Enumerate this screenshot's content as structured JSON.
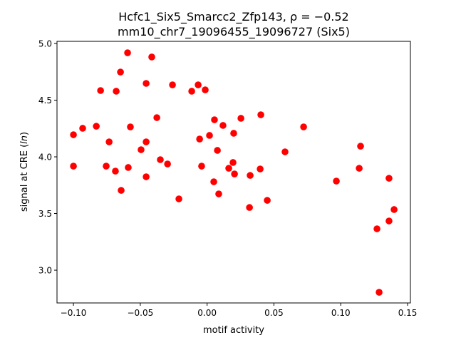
{
  "chart_data": {
    "type": "scatter",
    "title_line1": "Hcfc1_Six5_Smarcc2_Zfp143, ρ = −0.52",
    "title_line2": "mm10_chr7_19096455_19096727 (Six5)",
    "xlabel": "motif activity",
    "ylabel_prefix": "signal at CRE (",
    "ylabel_italic": "ln",
    "ylabel_suffix": ")",
    "xlim": [
      -0.1123,
      0.1521
    ],
    "ylim": [
      2.711,
      5.019
    ],
    "xticks": [
      -0.1,
      -0.05,
      0.0,
      0.05,
      0.1,
      0.15
    ],
    "xtick_labels": [
      "−0.10",
      "−0.05",
      "0.00",
      "0.05",
      "0.10",
      "0.15"
    ],
    "yticks": [
      3.0,
      3.5,
      4.0,
      4.5,
      5.0
    ],
    "ytick_labels": [
      "3.0",
      "3.5",
      "4.0",
      "4.5",
      "5.0"
    ],
    "grid": false,
    "marker_color": "#ff0000",
    "points": [
      [
        -0.0595,
        4.918
      ],
      [
        -0.0414,
        4.881
      ],
      [
        -0.0648,
        4.748
      ],
      [
        -0.0456,
        4.648
      ],
      [
        -0.0259,
        4.635
      ],
      [
        -0.0067,
        4.635
      ],
      [
        -0.0115,
        4.579
      ],
      [
        -0.0014,
        4.591
      ],
      [
        -0.0797,
        4.585
      ],
      [
        -0.068,
        4.579
      ],
      [
        -0.0376,
        4.346
      ],
      [
        0.0055,
        4.327
      ],
      [
        0.0119,
        4.277
      ],
      [
        -0.0931,
        4.252
      ],
      [
        -0.0829,
        4.27
      ],
      [
        -0.0574,
        4.264
      ],
      [
        -0.1,
        4.195
      ],
      [
        0.0199,
        4.208
      ],
      [
        0.0018,
        4.189
      ],
      [
        -0.0056,
        4.157
      ],
      [
        -0.0733,
        4.132
      ],
      [
        -0.0456,
        4.132
      ],
      [
        -0.0494,
        4.063
      ],
      [
        0.0077,
        4.057
      ],
      [
        -0.035,
        3.975
      ],
      [
        -0.0296,
        3.937
      ],
      [
        0.0194,
        3.95
      ],
      [
        -0.1,
        3.918
      ],
      [
        -0.0755,
        3.918
      ],
      [
        -0.0041,
        3.918
      ],
      [
        -0.0686,
        3.874
      ],
      [
        -0.059,
        3.906
      ],
      [
        0.0162,
        3.899
      ],
      [
        -0.0456,
        3.824
      ],
      [
        0.005,
        3.78
      ],
      [
        -0.0643,
        3.704
      ],
      [
        0.0087,
        3.673
      ],
      [
        -0.0211,
        3.629
      ],
      [
        0.0253,
        4.34
      ],
      [
        0.0402,
        4.371
      ],
      [
        0.0205,
        3.849
      ],
      [
        0.0397,
        3.893
      ],
      [
        0.0322,
        3.836
      ],
      [
        0.045,
        3.616
      ],
      [
        0.0317,
        3.553
      ],
      [
        0.0722,
        4.264
      ],
      [
        0.0583,
        4.044
      ],
      [
        0.1148,
        4.094
      ],
      [
        0.1138,
        3.899
      ],
      [
        0.0967,
        3.786
      ],
      [
        0.1361,
        3.811
      ],
      [
        0.1399,
        3.535
      ],
      [
        0.1361,
        3.434
      ],
      [
        0.1271,
        3.365
      ],
      [
        0.1287,
        2.805
      ]
    ]
  }
}
